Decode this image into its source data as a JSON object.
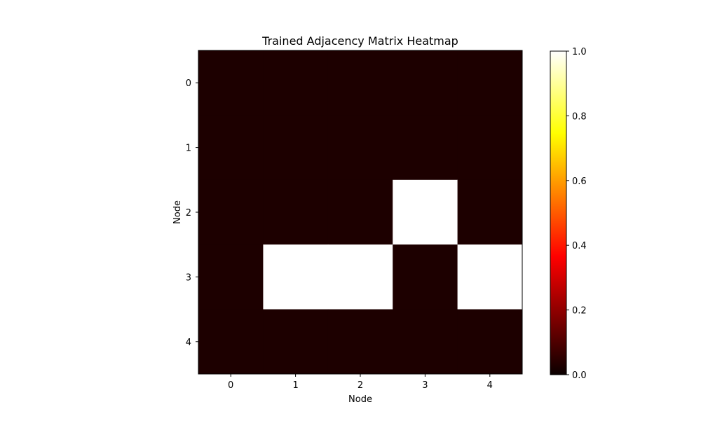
{
  "chart_data": {
    "type": "heatmap",
    "title": "Trained Adjacency Matrix Heatmap",
    "xlabel": "Node",
    "ylabel": "Node",
    "x_categories": [
      "0",
      "1",
      "2",
      "3",
      "4"
    ],
    "y_categories": [
      "0",
      "1",
      "2",
      "3",
      "4"
    ],
    "values": [
      [
        0,
        0,
        0,
        0,
        0
      ],
      [
        0,
        0,
        0,
        0,
        0
      ],
      [
        0,
        0,
        0,
        1,
        0
      ],
      [
        0,
        1,
        1,
        0,
        1
      ],
      [
        0,
        0,
        0,
        0,
        0
      ]
    ],
    "colormap": "hot",
    "colorbar": {
      "range": [
        0.0,
        1.0
      ],
      "ticks": [
        "0.0",
        "0.2",
        "0.4",
        "0.6",
        "0.8",
        "1.0"
      ]
    },
    "grid": false
  }
}
